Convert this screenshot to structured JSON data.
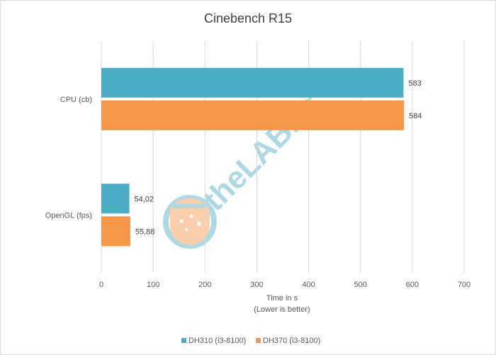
{
  "chart_data": {
    "type": "bar",
    "orientation": "horizontal",
    "title": "Cinebench R15",
    "categories": [
      "CPU (cb)",
      "OpenGL (fps)"
    ],
    "series": [
      {
        "name": "DH310 (i3-8100)",
        "color": "#4bacc6",
        "values": [
          583,
          54.02
        ],
        "labels": [
          "583",
          "54,02"
        ]
      },
      {
        "name": "DH370 (i3-8100)",
        "color": "#f79646",
        "values": [
          584,
          55.88
        ],
        "labels": [
          "584",
          "55,88"
        ]
      }
    ],
    "xlabel_lines": [
      "Time in s",
      "(Lower is better)"
    ],
    "xlim": [
      0,
      700
    ],
    "xticks": [
      0,
      100,
      200,
      300,
      400,
      500,
      600,
      700
    ],
    "grid": true,
    "legend_position": "bottom"
  },
  "watermark": {
    "text": "theLAB.gr"
  },
  "colors": {
    "gridline": "#d9d9d9"
  }
}
